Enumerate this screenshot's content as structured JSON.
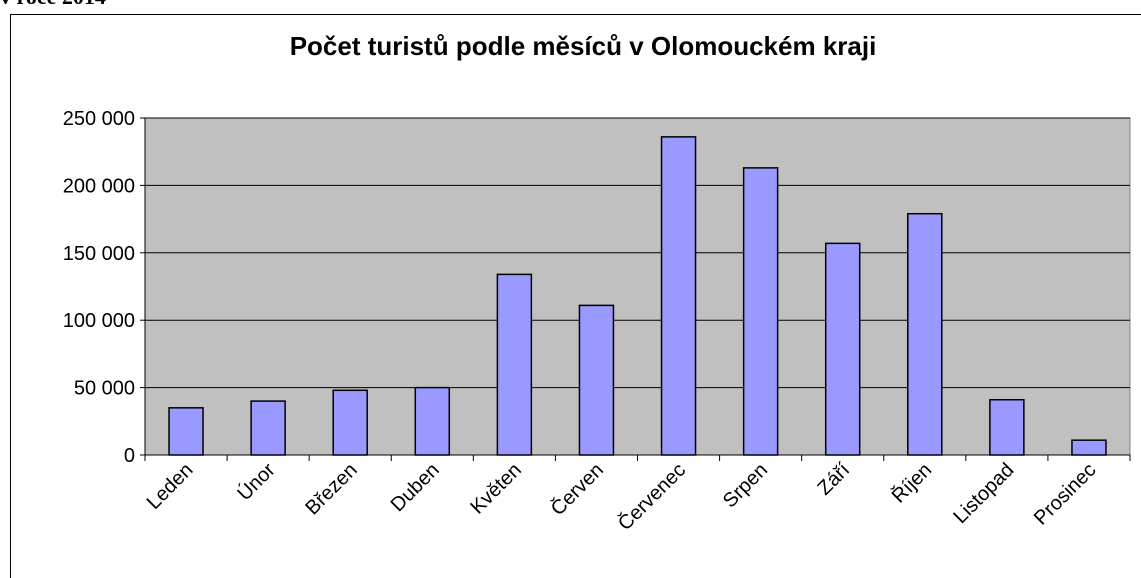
{
  "caption": "v roce 2014",
  "chart_data": {
    "type": "bar",
    "title": "Počet turistů podle měsíců v Olomouckém kraji",
    "categories": [
      "Leden",
      "Únor",
      "Březen",
      "Duben",
      "Květen",
      "Červen",
      "Červenec",
      "Srpen",
      "Září",
      "Říjen",
      "Listopad",
      "Prosinec"
    ],
    "values": [
      35000,
      40000,
      48000,
      50000,
      134000,
      111000,
      236000,
      213000,
      157000,
      179000,
      41000,
      11000
    ],
    "color": "#9999ff",
    "ylim": [
      0,
      250000
    ],
    "yticks": [
      0,
      {
        "value": 50000,
        "label": "50 000"
      },
      {
        "value": 100000,
        "label": "100 000"
      },
      {
        "value": 150000,
        "label": "150 000"
      },
      {
        "value": 200000,
        "label": "200 000"
      },
      {
        "value": 250000,
        "label": "250 000"
      }
    ],
    "grid": true
  }
}
